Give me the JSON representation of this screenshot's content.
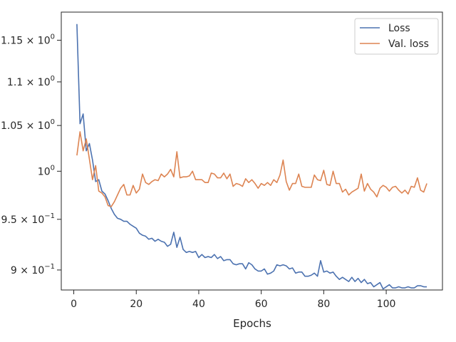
{
  "chart_data": {
    "type": "line",
    "title": "",
    "xlabel": "Epochs",
    "ylabel": "",
    "yscale": "log",
    "xlim": [
      -4,
      118
    ],
    "ylim": [
      0.881,
      1.185
    ],
    "grid": false,
    "legend_position": "top-right",
    "x_ticks": [
      {
        "value": 0,
        "label": "0"
      },
      {
        "value": 20,
        "label": "20"
      },
      {
        "value": 40,
        "label": "40"
      },
      {
        "value": 60,
        "label": "60"
      },
      {
        "value": 80,
        "label": "80"
      },
      {
        "value": 100,
        "label": "100"
      }
    ],
    "y_ticks": [
      {
        "value": 0.9,
        "label": "9 × 10",
        "exp": "−1"
      },
      {
        "value": 0.95,
        "label": "9.5 × 10",
        "exp": "−1"
      },
      {
        "value": 1.0,
        "label": "10",
        "exp": "0"
      },
      {
        "value": 1.05,
        "label": "1.05 × 10",
        "exp": "0"
      },
      {
        "value": 1.1,
        "label": "1.1 × 10",
        "exp": "0"
      },
      {
        "value": 1.15,
        "label": "1.15 × 10",
        "exp": "0"
      }
    ],
    "series": [
      {
        "name": "Loss",
        "color": "#4c72b0",
        "x_start": 1,
        "values": [
          1.17,
          1.052,
          1.063,
          1.022,
          1.03,
          1.012,
          0.989,
          0.991,
          0.979,
          0.976,
          0.969,
          0.961,
          0.955,
          0.951,
          0.95,
          0.948,
          0.948,
          0.945,
          0.943,
          0.941,
          0.936,
          0.934,
          0.933,
          0.93,
          0.931,
          0.928,
          0.93,
          0.928,
          0.927,
          0.923,
          0.925,
          0.937,
          0.922,
          0.932,
          0.92,
          0.917,
          0.918,
          0.917,
          0.918,
          0.912,
          0.915,
          0.912,
          0.913,
          0.912,
          0.915,
          0.911,
          0.913,
          0.909,
          0.91,
          0.91,
          0.906,
          0.905,
          0.906,
          0.906,
          0.901,
          0.907,
          0.905,
          0.901,
          0.899,
          0.899,
          0.901,
          0.896,
          0.897,
          0.899,
          0.905,
          0.904,
          0.905,
          0.904,
          0.901,
          0.902,
          0.897,
          0.898,
          0.898,
          0.894,
          0.894,
          0.895,
          0.897,
          0.894,
          0.909,
          0.898,
          0.899,
          0.897,
          0.898,
          0.894,
          0.891,
          0.893,
          0.891,
          0.889,
          0.893,
          0.889,
          0.892,
          0.888,
          0.891,
          0.887,
          0.888,
          0.884,
          0.886,
          0.888,
          0.882,
          0.884,
          0.886,
          0.883,
          0.883,
          0.884,
          0.883,
          0.883,
          0.884,
          0.883,
          0.883,
          0.885,
          0.885,
          0.884,
          0.884
        ]
      },
      {
        "name": "Val. loss",
        "color": "#dd8452",
        "x_start": 1,
        "values": [
          1.017,
          1.043,
          1.022,
          1.035,
          1.013,
          0.991,
          1.006,
          0.979,
          0.977,
          0.973,
          0.964,
          0.963,
          0.968,
          0.975,
          0.982,
          0.986,
          0.975,
          0.975,
          0.985,
          0.977,
          0.981,
          0.997,
          0.988,
          0.986,
          0.989,
          0.991,
          0.99,
          0.997,
          0.994,
          0.997,
          1.002,
          0.994,
          1.021,
          0.993,
          0.994,
          0.994,
          0.995,
          1.0,
          0.991,
          0.991,
          0.991,
          0.988,
          0.988,
          0.998,
          0.997,
          0.993,
          0.993,
          0.998,
          0.992,
          0.997,
          0.984,
          0.987,
          0.986,
          0.984,
          0.992,
          0.988,
          0.991,
          0.987,
          0.982,
          0.987,
          0.985,
          0.988,
          0.985,
          0.991,
          0.988,
          0.996,
          1.012,
          0.989,
          0.98,
          0.987,
          0.987,
          0.997,
          0.984,
          0.983,
          0.983,
          0.983,
          0.996,
          0.991,
          0.99,
          1.001,
          0.986,
          0.985,
          1.0,
          0.987,
          0.987,
          0.978,
          0.981,
          0.975,
          0.978,
          0.98,
          0.982,
          0.997,
          0.979,
          0.987,
          0.981,
          0.978,
          0.973,
          0.982,
          0.985,
          0.983,
          0.979,
          0.983,
          0.984,
          0.98,
          0.977,
          0.98,
          0.976,
          0.984,
          0.983,
          0.993,
          0.98,
          0.978,
          0.987
        ]
      }
    ]
  }
}
